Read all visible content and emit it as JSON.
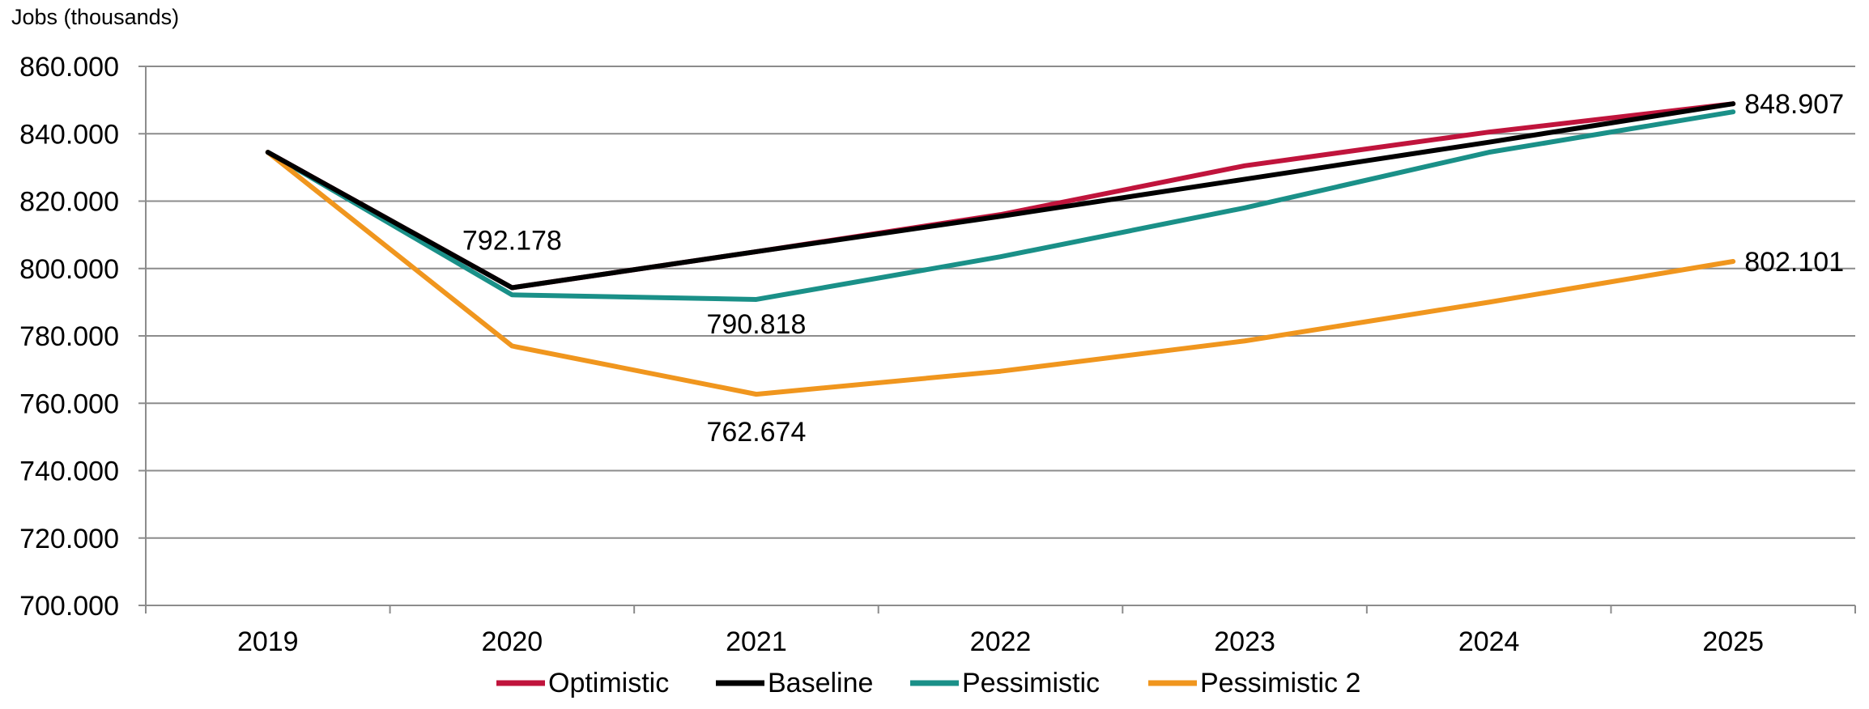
{
  "chart_data": {
    "type": "line",
    "ylabel": "Jobs (thousands)",
    "xlabel": "",
    "categories": [
      "2019",
      "2020",
      "2021",
      "2022",
      "2023",
      "2024",
      "2025"
    ],
    "ylim": [
      700,
      860
    ],
    "yticks": [
      700,
      720,
      740,
      760,
      780,
      800,
      820,
      840,
      860
    ],
    "ytick_labels": [
      "700.000",
      "720.000",
      "740.000",
      "760.000",
      "780.000",
      "800.000",
      "820.000",
      "840.000",
      "860.000"
    ],
    "grid": true,
    "legend_position": "bottom",
    "series": [
      {
        "name": "Optimistic",
        "color": "#C0143C",
        "values": [
          834.5,
          794.3,
          805.0,
          816.0,
          830.5,
          840.5,
          848.907
        ]
      },
      {
        "name": "Baseline",
        "color": "#000000",
        "values": [
          834.5,
          794.3,
          805.0,
          815.5,
          826.5,
          837.5,
          848.907
        ]
      },
      {
        "name": "Pessimistic",
        "color": "#1A9088",
        "values": [
          834.5,
          792.178,
          790.818,
          803.5,
          818.0,
          834.5,
          846.5
        ]
      },
      {
        "name": "Pessimistic 2",
        "color": "#F0961E",
        "values": [
          834.5,
          777.0,
          762.674,
          769.5,
          778.5,
          790.0,
          802.101
        ]
      }
    ],
    "annotations": [
      {
        "text": "792.178",
        "series": "Pessimistic",
        "category": "2020",
        "placement": "above"
      },
      {
        "text": "790.818",
        "series": "Pessimistic",
        "category": "2021",
        "placement": "below"
      },
      {
        "text": "762.674",
        "series": "Pessimistic 2",
        "category": "2021",
        "placement": "below"
      },
      {
        "text": "848.907",
        "series": "Baseline",
        "category": "2025",
        "placement": "right"
      },
      {
        "text": "802.101",
        "series": "Pessimistic 2",
        "category": "2025",
        "placement": "right"
      }
    ]
  }
}
